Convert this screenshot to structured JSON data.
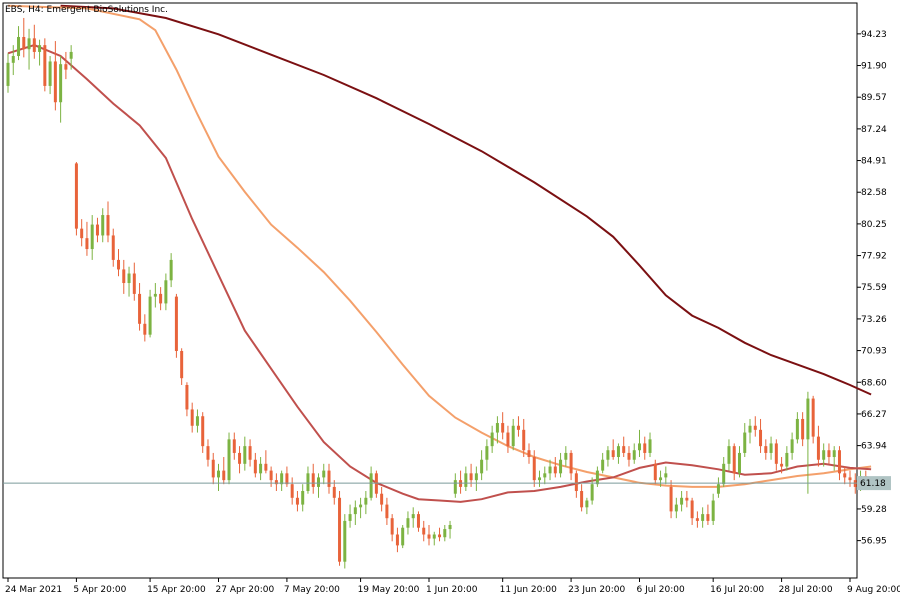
{
  "chart_data": {
    "type": "candlestick",
    "title": "EBS, H4:  Emergent BioSolutions Inc.",
    "x_tick_labels": [
      "24 Mar 2021",
      "5 Apr 20:00",
      "15 Apr 20:00",
      "27 Apr 20:00",
      "7 May 20:00",
      "19 May 20:00",
      "1 Jun 20:00",
      "11 Jun 20:00",
      "23 Jun 20:00",
      "6 Jul 20:00",
      "16 Jul 20:00",
      "28 Jul 20:00",
      "9 Aug 20:00"
    ],
    "y_tick_labels": [
      "94.23",
      "91.90",
      "89.57",
      "87.24",
      "84.91",
      "82.58",
      "80.25",
      "77.92",
      "75.59",
      "73.26",
      "70.93",
      "68.60",
      "66.27",
      "63.94",
      "59.28",
      "56.95"
    ],
    "ylim": [
      54.2,
      96.5
    ],
    "current_price": 61.18,
    "current_price_label": "61.18",
    "colors": {
      "bull": "#7cb342",
      "bear": "#e8633a",
      "ma_fast": "#c0504d",
      "ma_mid": "#f4a06b",
      "ma_slow": "#7b1012",
      "price_line": "#7a9a9a",
      "axis": "#000000",
      "label_bg": "#b0c4c4"
    },
    "candles": [
      {
        "o": 90.4,
        "h": 92.8,
        "l": 89.9,
        "c": 92.1
      },
      {
        "o": 92.1,
        "h": 93.4,
        "l": 91.2,
        "c": 92.6
      },
      {
        "o": 92.6,
        "h": 94.8,
        "l": 92.3,
        "c": 94.0
      },
      {
        "o": 94.0,
        "h": 95.4,
        "l": 92.5,
        "c": 93.1
      },
      {
        "o": 93.1,
        "h": 94.6,
        "l": 91.6,
        "c": 93.9
      },
      {
        "o": 93.9,
        "h": 94.9,
        "l": 92.4,
        "c": 92.9
      },
      {
        "o": 92.9,
        "h": 93.8,
        "l": 91.9,
        "c": 93.4
      },
      {
        "o": 93.4,
        "h": 93.9,
        "l": 90.0,
        "c": 90.4
      },
      {
        "o": 90.4,
        "h": 92.6,
        "l": 89.8,
        "c": 92.2
      },
      {
        "o": 92.2,
        "h": 93.7,
        "l": 88.6,
        "c": 89.2
      },
      {
        "o": 89.2,
        "h": 92.6,
        "l": 87.7,
        "c": 92.0
      },
      {
        "o": 92.0,
        "h": 92.9,
        "l": 90.9,
        "c": 91.6
      },
      {
        "o": 92.4,
        "h": 93.4,
        "l": 91.6,
        "c": 92.9
      },
      {
        "o": 84.7,
        "h": 84.8,
        "l": 79.4,
        "c": 79.9
      },
      {
        "o": 79.9,
        "h": 80.6,
        "l": 78.6,
        "c": 79.2
      },
      {
        "o": 79.2,
        "h": 80.4,
        "l": 77.9,
        "c": 78.4
      },
      {
        "o": 78.4,
        "h": 80.9,
        "l": 77.6,
        "c": 80.2
      },
      {
        "o": 80.2,
        "h": 80.7,
        "l": 78.9,
        "c": 79.4
      },
      {
        "o": 79.4,
        "h": 81.4,
        "l": 78.9,
        "c": 80.9
      },
      {
        "o": 80.9,
        "h": 81.9,
        "l": 78.9,
        "c": 79.4
      },
      {
        "o": 79.4,
        "h": 79.9,
        "l": 77.1,
        "c": 77.6
      },
      {
        "o": 77.6,
        "h": 78.4,
        "l": 76.4,
        "c": 76.9
      },
      {
        "o": 76.9,
        "h": 77.6,
        "l": 75.1,
        "c": 75.9
      },
      {
        "o": 75.9,
        "h": 77.1,
        "l": 74.9,
        "c": 76.6
      },
      {
        "o": 76.6,
        "h": 77.4,
        "l": 74.6,
        "c": 75.1
      },
      {
        "o": 75.1,
        "h": 75.9,
        "l": 72.4,
        "c": 72.9
      },
      {
        "o": 72.9,
        "h": 73.6,
        "l": 71.6,
        "c": 72.1
      },
      {
        "o": 72.1,
        "h": 75.4,
        "l": 71.9,
        "c": 74.9
      },
      {
        "o": 74.9,
        "h": 75.9,
        "l": 74.1,
        "c": 75.1
      },
      {
        "o": 75.1,
        "h": 75.6,
        "l": 73.9,
        "c": 74.4
      },
      {
        "o": 74.4,
        "h": 76.6,
        "l": 73.9,
        "c": 76.1
      },
      {
        "o": 76.1,
        "h": 78.1,
        "l": 75.6,
        "c": 77.6
      },
      {
        "o": 74.9,
        "h": 75.1,
        "l": 70.4,
        "c": 70.9
      },
      {
        "o": 70.9,
        "h": 71.1,
        "l": 68.4,
        "c": 68.9
      },
      {
        "o": 68.4,
        "h": 68.6,
        "l": 66.1,
        "c": 66.6
      },
      {
        "o": 66.6,
        "h": 67.1,
        "l": 64.9,
        "c": 65.4
      },
      {
        "o": 65.4,
        "h": 66.6,
        "l": 64.9,
        "c": 66.1
      },
      {
        "o": 66.1,
        "h": 66.4,
        "l": 63.4,
        "c": 63.9
      },
      {
        "o": 63.9,
        "h": 64.4,
        "l": 62.4,
        "c": 62.9
      },
      {
        "o": 62.9,
        "h": 63.4,
        "l": 61.1,
        "c": 61.6
      },
      {
        "o": 61.6,
        "h": 62.6,
        "l": 60.6,
        "c": 62.1
      },
      {
        "o": 62.1,
        "h": 63.1,
        "l": 61.1,
        "c": 61.4
      },
      {
        "o": 61.4,
        "h": 64.9,
        "l": 61.1,
        "c": 64.4
      },
      {
        "o": 64.4,
        "h": 64.9,
        "l": 62.9,
        "c": 63.4
      },
      {
        "o": 63.4,
        "h": 63.9,
        "l": 61.9,
        "c": 62.6
      },
      {
        "o": 62.6,
        "h": 64.6,
        "l": 62.1,
        "c": 63.9
      },
      {
        "o": 63.9,
        "h": 64.4,
        "l": 62.4,
        "c": 62.9
      },
      {
        "o": 62.9,
        "h": 63.4,
        "l": 61.6,
        "c": 61.9
      },
      {
        "o": 61.9,
        "h": 63.1,
        "l": 61.4,
        "c": 62.6
      },
      {
        "o": 62.6,
        "h": 63.6,
        "l": 61.9,
        "c": 62.1
      },
      {
        "o": 62.1,
        "h": 62.4,
        "l": 60.9,
        "c": 61.4
      },
      {
        "o": 61.4,
        "h": 61.9,
        "l": 60.6,
        "c": 61.1
      },
      {
        "o": 61.1,
        "h": 62.1,
        "l": 60.6,
        "c": 61.9
      },
      {
        "o": 61.9,
        "h": 62.4,
        "l": 60.9,
        "c": 61.1
      },
      {
        "o": 61.1,
        "h": 61.6,
        "l": 59.6,
        "c": 60.1
      },
      {
        "o": 60.1,
        "h": 60.6,
        "l": 59.1,
        "c": 59.6
      },
      {
        "o": 59.6,
        "h": 61.1,
        "l": 59.1,
        "c": 60.6
      },
      {
        "o": 60.6,
        "h": 62.4,
        "l": 60.4,
        "c": 61.9
      },
      {
        "o": 61.9,
        "h": 62.6,
        "l": 60.4,
        "c": 60.9
      },
      {
        "o": 60.9,
        "h": 61.9,
        "l": 60.1,
        "c": 61.6
      },
      {
        "o": 61.6,
        "h": 62.6,
        "l": 61.1,
        "c": 62.1
      },
      {
        "o": 62.1,
        "h": 62.6,
        "l": 60.4,
        "c": 60.9
      },
      {
        "o": 60.9,
        "h": 61.4,
        "l": 59.6,
        "c": 60.1
      },
      {
        "o": 60.1,
        "h": 60.6,
        "l": 55.1,
        "c": 55.4
      },
      {
        "o": 55.4,
        "h": 58.9,
        "l": 54.9,
        "c": 58.4
      },
      {
        "o": 58.4,
        "h": 59.6,
        "l": 57.9,
        "c": 58.9
      },
      {
        "o": 58.9,
        "h": 59.9,
        "l": 58.1,
        "c": 59.4
      },
      {
        "o": 59.4,
        "h": 60.1,
        "l": 58.6,
        "c": 59.6
      },
      {
        "o": 59.6,
        "h": 60.6,
        "l": 58.9,
        "c": 60.1
      },
      {
        "o": 60.1,
        "h": 62.4,
        "l": 59.9,
        "c": 61.9
      },
      {
        "o": 61.9,
        "h": 62.1,
        "l": 60.1,
        "c": 60.4
      },
      {
        "o": 60.4,
        "h": 60.9,
        "l": 59.1,
        "c": 59.6
      },
      {
        "o": 59.6,
        "h": 60.1,
        "l": 58.1,
        "c": 58.6
      },
      {
        "o": 58.6,
        "h": 58.9,
        "l": 56.9,
        "c": 57.4
      },
      {
        "o": 57.4,
        "h": 57.9,
        "l": 56.1,
        "c": 56.6
      },
      {
        "o": 56.6,
        "h": 58.1,
        "l": 56.4,
        "c": 57.9
      },
      {
        "o": 57.9,
        "h": 59.1,
        "l": 57.4,
        "c": 58.6
      },
      {
        "o": 58.6,
        "h": 59.4,
        "l": 57.9,
        "c": 58.9
      },
      {
        "o": 58.9,
        "h": 59.1,
        "l": 57.6,
        "c": 57.9
      },
      {
        "o": 57.9,
        "h": 58.4,
        "l": 56.9,
        "c": 57.4
      },
      {
        "o": 57.4,
        "h": 58.1,
        "l": 56.6,
        "c": 57.1
      },
      {
        "o": 57.1,
        "h": 57.6,
        "l": 56.6,
        "c": 57.4
      },
      {
        "o": 57.4,
        "h": 57.9,
        "l": 56.9,
        "c": 57.2
      },
      {
        "o": 57.2,
        "h": 58.1,
        "l": 56.9,
        "c": 57.8
      },
      {
        "o": 57.8,
        "h": 58.4,
        "l": 57.1,
        "c": 58.1
      },
      {
        "o": 60.4,
        "h": 61.9,
        "l": 60.1,
        "c": 61.4
      },
      {
        "o": 61.4,
        "h": 62.1,
        "l": 60.4,
        "c": 60.9
      },
      {
        "o": 60.9,
        "h": 62.4,
        "l": 60.6,
        "c": 61.9
      },
      {
        "o": 61.9,
        "h": 62.6,
        "l": 60.9,
        "c": 61.4
      },
      {
        "o": 61.4,
        "h": 62.4,
        "l": 60.6,
        "c": 61.9
      },
      {
        "o": 61.9,
        "h": 63.6,
        "l": 61.4,
        "c": 62.9
      },
      {
        "o": 62.9,
        "h": 64.4,
        "l": 62.1,
        "c": 63.9
      },
      {
        "o": 63.9,
        "h": 65.4,
        "l": 63.4,
        "c": 64.9
      },
      {
        "o": 64.9,
        "h": 66.1,
        "l": 64.1,
        "c": 65.6
      },
      {
        "o": 65.6,
        "h": 66.4,
        "l": 64.4,
        "c": 64.9
      },
      {
        "o": 64.9,
        "h": 65.4,
        "l": 63.4,
        "c": 63.9
      },
      {
        "o": 63.9,
        "h": 65.9,
        "l": 63.6,
        "c": 65.4
      },
      {
        "o": 65.4,
        "h": 66.1,
        "l": 64.6,
        "c": 65.1
      },
      {
        "o": 65.1,
        "h": 65.9,
        "l": 63.1,
        "c": 63.6
      },
      {
        "o": 63.6,
        "h": 64.1,
        "l": 62.6,
        "c": 63.1
      },
      {
        "o": 63.1,
        "h": 63.6,
        "l": 60.9,
        "c": 61.4
      },
      {
        "o": 61.4,
        "h": 62.1,
        "l": 60.9,
        "c": 61.6
      },
      {
        "o": 61.6,
        "h": 62.4,
        "l": 61.1,
        "c": 61.9
      },
      {
        "o": 61.9,
        "h": 62.9,
        "l": 61.4,
        "c": 62.4
      },
      {
        "o": 62.4,
        "h": 63.1,
        "l": 61.6,
        "c": 61.9
      },
      {
        "o": 61.9,
        "h": 63.4,
        "l": 61.6,
        "c": 62.9
      },
      {
        "o": 62.9,
        "h": 63.9,
        "l": 62.4,
        "c": 63.4
      },
      {
        "o": 63.4,
        "h": 63.6,
        "l": 61.4,
        "c": 61.9
      },
      {
        "o": 61.9,
        "h": 62.1,
        "l": 60.1,
        "c": 60.6
      },
      {
        "o": 60.6,
        "h": 61.1,
        "l": 59.1,
        "c": 59.4
      },
      {
        "o": 59.4,
        "h": 60.1,
        "l": 58.9,
        "c": 59.9
      },
      {
        "o": 59.9,
        "h": 61.6,
        "l": 59.6,
        "c": 61.1
      },
      {
        "o": 61.1,
        "h": 62.4,
        "l": 60.9,
        "c": 62.1
      },
      {
        "o": 62.1,
        "h": 63.4,
        "l": 61.9,
        "c": 62.9
      },
      {
        "o": 62.9,
        "h": 63.9,
        "l": 62.4,
        "c": 63.6
      },
      {
        "o": 63.6,
        "h": 64.4,
        "l": 62.9,
        "c": 63.1
      },
      {
        "o": 63.1,
        "h": 64.1,
        "l": 62.6,
        "c": 63.9
      },
      {
        "o": 63.9,
        "h": 64.6,
        "l": 63.1,
        "c": 63.4
      },
      {
        "o": 63.4,
        "h": 63.9,
        "l": 62.4,
        "c": 62.9
      },
      {
        "o": 62.9,
        "h": 64.1,
        "l": 62.6,
        "c": 63.6
      },
      {
        "o": 63.6,
        "h": 65.1,
        "l": 63.1,
        "c": 64.1
      },
      {
        "o": 64.1,
        "h": 64.6,
        "l": 62.9,
        "c": 63.4
      },
      {
        "o": 63.4,
        "h": 64.9,
        "l": 63.1,
        "c": 64.4
      },
      {
        "o": 62.6,
        "h": 62.9,
        "l": 61.1,
        "c": 61.4
      },
      {
        "o": 61.4,
        "h": 62.1,
        "l": 60.9,
        "c": 61.6
      },
      {
        "o": 61.6,
        "h": 62.4,
        "l": 61.1,
        "c": 61.9
      },
      {
        "o": 60.9,
        "h": 61.4,
        "l": 58.6,
        "c": 59.1
      },
      {
        "o": 59.1,
        "h": 60.1,
        "l": 58.6,
        "c": 59.6
      },
      {
        "o": 59.6,
        "h": 60.6,
        "l": 59.1,
        "c": 60.1
      },
      {
        "o": 60.1,
        "h": 60.6,
        "l": 59.4,
        "c": 59.9
      },
      {
        "o": 59.9,
        "h": 60.1,
        "l": 58.1,
        "c": 58.6
      },
      {
        "o": 58.6,
        "h": 59.1,
        "l": 57.9,
        "c": 58.4
      },
      {
        "o": 58.4,
        "h": 59.4,
        "l": 57.9,
        "c": 58.9
      },
      {
        "o": 58.9,
        "h": 59.6,
        "l": 58.1,
        "c": 58.4
      },
      {
        "o": 58.4,
        "h": 60.4,
        "l": 58.1,
        "c": 59.9
      },
      {
        "o": 60.4,
        "h": 61.6,
        "l": 60.1,
        "c": 61.1
      },
      {
        "o": 61.1,
        "h": 63.1,
        "l": 60.9,
        "c": 62.6
      },
      {
        "o": 62.6,
        "h": 64.4,
        "l": 62.1,
        "c": 63.9
      },
      {
        "o": 63.9,
        "h": 64.1,
        "l": 61.4,
        "c": 61.9
      },
      {
        "o": 61.9,
        "h": 63.9,
        "l": 61.6,
        "c": 63.4
      },
      {
        "o": 63.4,
        "h": 65.6,
        "l": 63.1,
        "c": 64.9
      },
      {
        "o": 64.9,
        "h": 65.9,
        "l": 64.1,
        "c": 65.4
      },
      {
        "o": 65.4,
        "h": 66.1,
        "l": 64.6,
        "c": 65.1
      },
      {
        "o": 65.1,
        "h": 65.9,
        "l": 63.4,
        "c": 63.9
      },
      {
        "o": 63.9,
        "h": 64.4,
        "l": 62.9,
        "c": 63.4
      },
      {
        "o": 63.4,
        "h": 64.6,
        "l": 62.9,
        "c": 64.1
      },
      {
        "o": 64.1,
        "h": 64.4,
        "l": 62.1,
        "c": 62.6
      },
      {
        "o": 62.6,
        "h": 63.1,
        "l": 61.9,
        "c": 62.4
      },
      {
        "o": 62.4,
        "h": 63.9,
        "l": 62.1,
        "c": 63.4
      },
      {
        "o": 63.4,
        "h": 64.9,
        "l": 62.9,
        "c": 64.4
      },
      {
        "o": 64.4,
        "h": 66.4,
        "l": 64.1,
        "c": 65.9
      },
      {
        "o": 65.9,
        "h": 66.4,
        "l": 63.9,
        "c": 64.4
      },
      {
        "o": 64.4,
        "h": 67.9,
        "l": 60.4,
        "c": 67.4
      },
      {
        "o": 67.4,
        "h": 67.6,
        "l": 64.1,
        "c": 64.6
      },
      {
        "o": 64.6,
        "h": 65.4,
        "l": 62.4,
        "c": 62.9
      },
      {
        "o": 62.9,
        "h": 64.1,
        "l": 62.4,
        "c": 63.6
      },
      {
        "o": 63.6,
        "h": 64.1,
        "l": 62.6,
        "c": 63.1
      },
      {
        "o": 63.1,
        "h": 63.9,
        "l": 62.1,
        "c": 63.6
      },
      {
        "o": 63.6,
        "h": 63.9,
        "l": 61.4,
        "c": 61.9
      },
      {
        "o": 61.9,
        "h": 62.4,
        "l": 61.1,
        "c": 61.6
      },
      {
        "o": 61.6,
        "h": 62.1,
        "l": 60.9,
        "c": 61.4
      },
      {
        "o": 61.4,
        "h": 61.9,
        "l": 60.4,
        "c": 60.9
      },
      {
        "o": 60.9,
        "h": 62.1,
        "l": 60.6,
        "c": 61.7
      },
      {
        "o": 61.7,
        "h": 62.1,
        "l": 60.9,
        "c": 61.2
      }
    ],
    "ma_fast": [
      [
        0,
        92.8
      ],
      [
        5,
        93.4
      ],
      [
        10,
        92.6
      ],
      [
        15,
        90.9
      ],
      [
        20,
        89.1
      ],
      [
        25,
        87.5
      ],
      [
        30,
        85.1
      ],
      [
        35,
        80.6
      ],
      [
        40,
        76.5
      ],
      [
        45,
        72.4
      ],
      [
        50,
        69.6
      ],
      [
        55,
        66.8
      ],
      [
        60,
        64.2
      ],
      [
        65,
        62.4
      ],
      [
        70,
        61.2
      ],
      [
        75,
        60.4
      ],
      [
        78,
        60.0
      ],
      [
        82,
        59.9
      ],
      [
        86,
        59.8
      ],
      [
        90,
        60.0
      ],
      [
        95,
        60.5
      ],
      [
        100,
        60.6
      ],
      [
        105,
        60.9
      ],
      [
        110,
        61.3
      ],
      [
        115,
        61.6
      ],
      [
        120,
        62.3
      ],
      [
        125,
        62.7
      ],
      [
        130,
        62.5
      ],
      [
        135,
        62.2
      ],
      [
        140,
        61.8
      ],
      [
        145,
        61.9
      ],
      [
        150,
        62.4
      ],
      [
        155,
        62.6
      ],
      [
        160,
        62.3
      ],
      [
        164,
        62.2
      ]
    ],
    "ma_mid": [
      [
        0,
        96.3
      ],
      [
        15,
        96.1
      ],
      [
        25,
        95.3
      ],
      [
        28,
        94.5
      ],
      [
        32,
        91.6
      ],
      [
        36,
        88.3
      ],
      [
        40,
        85.2
      ],
      [
        45,
        82.6
      ],
      [
        50,
        80.2
      ],
      [
        55,
        78.5
      ],
      [
        60,
        76.7
      ],
      [
        65,
        74.6
      ],
      [
        70,
        72.3
      ],
      [
        75,
        69.9
      ],
      [
        80,
        67.6
      ],
      [
        85,
        66.0
      ],
      [
        90,
        64.9
      ],
      [
        95,
        63.9
      ],
      [
        100,
        63.1
      ],
      [
        105,
        62.5
      ],
      [
        110,
        62.0
      ],
      [
        115,
        61.6
      ],
      [
        120,
        61.2
      ],
      [
        125,
        61.0
      ],
      [
        130,
        60.9
      ],
      [
        135,
        60.9
      ],
      [
        140,
        61.1
      ],
      [
        145,
        61.4
      ],
      [
        150,
        61.7
      ],
      [
        155,
        61.9
      ],
      [
        160,
        62.2
      ],
      [
        164,
        62.4
      ]
    ],
    "ma_slow": [
      [
        10,
        96.3
      ],
      [
        20,
        96.1
      ],
      [
        30,
        95.4
      ],
      [
        40,
        94.2
      ],
      [
        50,
        92.7
      ],
      [
        60,
        91.2
      ],
      [
        70,
        89.5
      ],
      [
        80,
        87.6
      ],
      [
        90,
        85.6
      ],
      [
        100,
        83.3
      ],
      [
        110,
        80.8
      ],
      [
        115,
        79.3
      ],
      [
        120,
        77.2
      ],
      [
        125,
        75.0
      ],
      [
        130,
        73.5
      ],
      [
        135,
        72.6
      ],
      [
        140,
        71.5
      ],
      [
        145,
        70.6
      ],
      [
        150,
        69.9
      ],
      [
        155,
        69.2
      ],
      [
        160,
        68.4
      ],
      [
        164,
        67.7
      ]
    ]
  }
}
